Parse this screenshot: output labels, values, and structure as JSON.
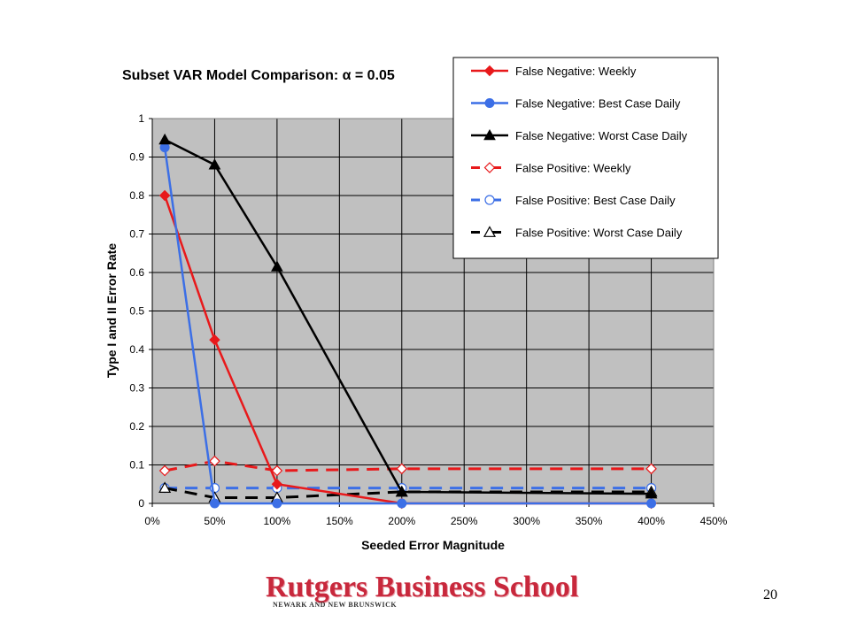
{
  "slide": {
    "page_number": "20",
    "logo": {
      "main": "Rutgers Business School",
      "sub": "NEWARK AND NEW BRUNSWICK"
    }
  },
  "chart_data": {
    "type": "line",
    "title": "Subset VAR Model Comparison: α = 0.05",
    "xlabel": "Seeded Error Magnitude",
    "ylabel": "Type I and II Error Rate",
    "xlim": [
      0,
      450
    ],
    "ylim": [
      0,
      1
    ],
    "x_ticks": [
      0,
      50,
      100,
      150,
      200,
      250,
      300,
      350,
      400,
      450
    ],
    "x_tick_labels": [
      "0%",
      "50%",
      "100%",
      "150%",
      "200%",
      "250%",
      "300%",
      "350%",
      "400%",
      "450%"
    ],
    "y_ticks": [
      0,
      0.1,
      0.2,
      0.3,
      0.4,
      0.5,
      0.6,
      0.7,
      0.8,
      0.9,
      1
    ],
    "y_tick_labels": [
      "0",
      "0.1",
      "0.2",
      "0.3",
      "0.4",
      "0.5",
      "0.6",
      "0.7",
      "0.8",
      "0.9",
      "1"
    ],
    "grid": true,
    "background_color": "#c0c0c0",
    "legend_position": "top-right",
    "x": [
      10,
      50,
      100,
      200,
      400
    ],
    "series": [
      {
        "name": "False Negative:  Weekly",
        "values": [
          0.8,
          0.425,
          0.05,
          0.0,
          0.0
        ],
        "color": "#e8191b",
        "dash": "solid",
        "marker": "diamond",
        "filled": true
      },
      {
        "name": "False Negative:  Best Case Daily",
        "values": [
          0.925,
          0.0,
          0.0,
          0.0,
          0.0
        ],
        "color": "#3c6fe6",
        "dash": "solid",
        "marker": "circle",
        "filled": true
      },
      {
        "name": "False Negative:  Worst Case Daily",
        "values": [
          0.945,
          0.88,
          0.615,
          0.03,
          0.025
        ],
        "color": "#000000",
        "dash": "solid",
        "marker": "triangle",
        "filled": true
      },
      {
        "name": "False Positive:  Weekly",
        "values": [
          0.085,
          0.11,
          0.085,
          0.09,
          0.09
        ],
        "color": "#e8191b",
        "dash": "dashed",
        "marker": "diamond",
        "filled": false
      },
      {
        "name": "False Positive:  Best Case Daily",
        "values": [
          0.04,
          0.04,
          0.04,
          0.04,
          0.04
        ],
        "color": "#3c6fe6",
        "dash": "dashed",
        "marker": "circle",
        "filled": false
      },
      {
        "name": "False Positive:  Worst Case Daily",
        "values": [
          0.04,
          0.015,
          0.015,
          0.03,
          0.03
        ],
        "color": "#000000",
        "dash": "dashed",
        "marker": "triangle",
        "filled": false
      }
    ]
  }
}
